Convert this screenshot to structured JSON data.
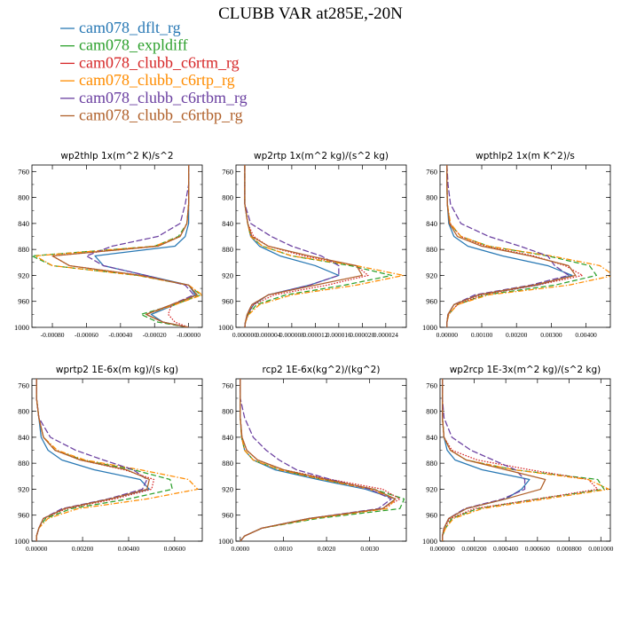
{
  "chart_data": {
    "type": "line",
    "title": "CLUBB VAR at285E,-20N",
    "colors": {
      "cam078_dflt_rg": "#2878b4",
      "cam078_expldiff": "#2ca02c",
      "cam078_clubb_c6rtm_rg": "#d62728",
      "cam078_clubb_c6rtp_rg": "#ff8c00",
      "cam078_clubb_c6rtbm_rg": "#6a3fa0",
      "cam078_clubb_c6rtbp_rg": "#b0602a"
    },
    "legend": [
      {
        "name": "cam078_dflt_rg",
        "dash": "solid"
      },
      {
        "name": "cam078_expldiff",
        "dash": "dash"
      },
      {
        "name": "cam078_clubb_c6rtm_rg",
        "dash": "dot"
      },
      {
        "name": "cam078_clubb_c6rtp_rg",
        "dash": "dashdot"
      },
      {
        "name": "cam078_clubb_c6rtbm_rg",
        "dash": "longdash"
      },
      {
        "name": "cam078_clubb_c6rtbp_rg",
        "dash": "solid"
      }
    ],
    "y_levels": [
      750,
      780,
      810,
      840,
      860,
      875,
      890,
      905,
      920,
      935,
      950,
      965,
      980,
      992,
      1000
    ],
    "ylim": [
      1000,
      750
    ],
    "yticks": [
      760,
      800,
      840,
      880,
      920,
      960,
      1000
    ],
    "panels": [
      {
        "title": "wp2thlp   1x(m^2 K)/s^2",
        "xlim": [
          -0.00092,
          8e-05
        ],
        "xtick_labels": [
          "-0.00080",
          "-0.00060",
          "-0.00040",
          "-0.00020",
          "-0.00000"
        ],
        "xtick_values": [
          -0.0008,
          -0.0006,
          -0.0004,
          -0.0002,
          0.0
        ],
        "series": [
          {
            "name": "cam078_dflt_rg",
            "values": [
              0,
              0,
              0,
              0,
              -2e-05,
              -8e-05,
              -0.00055,
              -0.0005,
              -0.00025,
              0,
              4e-05,
              -8e-05,
              -0.00022,
              -0.00015,
              0
            ]
          },
          {
            "name": "cam078_expldiff",
            "values": [
              0,
              0,
              0,
              -1e-05,
              -6e-05,
              -0.0002,
              -0.00092,
              -0.0008,
              -0.0003,
              0,
              7e-05,
              -8e-05,
              -0.00028,
              -0.00018,
              0
            ]
          },
          {
            "name": "cam078_clubb_c6rtm_rg",
            "values": [
              0,
              0,
              0,
              -1e-05,
              -5e-05,
              -0.00018,
              -0.0008,
              -0.0007,
              -0.00028,
              0,
              5e-05,
              -0.0001,
              -0.00012,
              -8e-05,
              0
            ]
          },
          {
            "name": "cam078_clubb_c6rtp_rg",
            "values": [
              0,
              0,
              0,
              -1e-05,
              -5e-05,
              -0.0002,
              -0.0009,
              -0.0008,
              -0.0003,
              0,
              8e-05,
              -8e-05,
              -0.00025,
              -0.00015,
              0
            ]
          },
          {
            "name": "cam078_clubb_c6rtbm_rg",
            "values": [
              0,
              0,
              -2e-05,
              -5e-05,
              -0.00018,
              -0.00045,
              -0.0006,
              -0.0005,
              -0.00025,
              -2e-05,
              3e-05,
              -0.0001,
              -0.00025,
              -0.00015,
              0
            ]
          },
          {
            "name": "cam078_clubb_c6rtbp_rg",
            "values": [
              0,
              0,
              0,
              -1e-05,
              -5e-05,
              -0.00018,
              -0.0008,
              -0.0007,
              -0.00028,
              0,
              5e-05,
              -0.0001,
              -0.00025,
              -0.00015,
              0
            ]
          }
        ]
      },
      {
        "title": "wp2rtp   1x(m^2 kg)/(s^2 kg)",
        "xlim": [
          -1.5e-06,
          2.75e-05
        ],
        "xtick_labels": [
          "0.000000",
          "0.000004",
          "0.000008",
          "0.000012",
          "0.000016",
          "0.000020",
          "0.000024"
        ],
        "xtick_values": [
          0.0,
          4e-06,
          8e-06,
          1.2e-05,
          1.6e-05,
          2e-05,
          2.4e-05
        ],
        "series": [
          {
            "name": "cam078_dflt_rg",
            "values": [
              0,
              0,
              0,
              5e-07,
              1e-06,
              2.5e-06,
              6e-06,
              1.2e-05,
              1.6e-05,
              1.1e-05,
              4e-06,
              1.5e-06,
              5e-07,
              1e-07,
              0
            ]
          },
          {
            "name": "cam078_expldiff",
            "values": [
              0,
              0,
              0,
              5e-07,
              1e-06,
              3e-06,
              8e-06,
              1.8e-05,
              2.5e-05,
              1.7e-05,
              7e-06,
              2e-06,
              6e-07,
              1e-07,
              0
            ]
          },
          {
            "name": "cam078_clubb_c6rtm_rg",
            "values": [
              0,
              0,
              0,
              5e-07,
              1.5e-06,
              4e-06,
              1e-05,
              1.9e-05,
              2.1e-05,
              1.4e-05,
              5e-06,
              1.5e-06,
              5e-07,
              1e-07,
              0
            ]
          },
          {
            "name": "cam078_clubb_c6rtp_rg",
            "values": [
              0,
              0,
              0,
              5e-07,
              1e-06,
              3e-06,
              8e-06,
              1.9e-05,
              2.7e-05,
              1.9e-05,
              8e-06,
              2.5e-06,
              7e-07,
              1e-07,
              0
            ]
          },
          {
            "name": "cam078_clubb_c6rtbm_rg",
            "values": [
              0,
              0,
              0,
              1e-06,
              4.5e-06,
              8e-06,
              1.3e-05,
              1.6e-05,
              1.6e-05,
              1.1e-05,
              4e-06,
              1.2e-06,
              4e-07,
              1e-07,
              0
            ]
          },
          {
            "name": "cam078_clubb_c6rtbp_rg",
            "values": [
              0,
              0,
              0,
              5e-07,
              1.2e-06,
              4e-06,
              1.1e-05,
              1.9e-05,
              2e-05,
              1.2e-05,
              4e-06,
              1.2e-06,
              4e-07,
              1e-07,
              0
            ]
          }
        ]
      },
      {
        "title": "wpthlp2   1x(m K^2)/s",
        "xlim": [
          -0.0002,
          0.0047
        ],
        "xtick_labels": [
          "0.00000",
          "0.00100",
          "0.00200",
          "0.00300",
          "0.00400"
        ],
        "xtick_values": [
          0.0,
          0.001,
          0.002,
          0.003,
          0.004
        ],
        "series": [
          {
            "name": "cam078_dflt_rg",
            "values": [
              0,
              0,
              1e-05,
              5e-05,
              0.0002,
              0.0006,
              0.0016,
              0.0029,
              0.0036,
              0.0026,
              0.0009,
              0.0002,
              3e-05,
              0,
              0
            ]
          },
          {
            "name": "cam078_expldiff",
            "values": [
              0,
              0,
              1e-05,
              8e-05,
              0.0004,
              0.0012,
              0.0029,
              0.0041,
              0.0043,
              0.0031,
              0.0011,
              0.0003,
              5e-05,
              0,
              0
            ]
          },
          {
            "name": "cam078_clubb_c6rtm_rg",
            "values": [
              0,
              0,
              1e-05,
              8e-05,
              0.0004,
              0.0011,
              0.0025,
              0.0034,
              0.0039,
              0.0026,
              0.001,
              0.0003,
              5e-05,
              0,
              0
            ]
          },
          {
            "name": "cam078_clubb_c6rtp_rg",
            "values": [
              0,
              0,
              1e-05,
              0.0001,
              0.0004,
              0.0012,
              0.003,
              0.0044,
              0.0048,
              0.0035,
              0.0012,
              0.0003,
              5e-05,
              0,
              0
            ]
          },
          {
            "name": "cam078_clubb_c6rtbm_rg",
            "values": [
              0,
              3e-05,
              0.0001,
              0.0004,
              0.0012,
              0.0021,
              0.0029,
              0.0031,
              0.0035,
              0.0024,
              0.0008,
              0.0002,
              3e-05,
              0,
              0
            ]
          },
          {
            "name": "cam078_clubb_c6rtbp_rg",
            "values": [
              0,
              0,
              1e-05,
              7e-05,
              0.0003,
              0.001,
              0.0024,
              0.0035,
              0.0037,
              0.0025,
              0.0009,
              0.0002,
              3e-05,
              0,
              0
            ]
          }
        ]
      },
      {
        "title": "wprtp2   1E-6x(m kg)/(s kg)",
        "xlim": [
          -0.0002,
          0.0072
        ],
        "xtick_labels": [
          "0.00000",
          "0.00200",
          "0.00400",
          "0.00600"
        ],
        "xtick_values": [
          0.0,
          0.002,
          0.004,
          0.006
        ],
        "series": [
          {
            "name": "cam078_dflt_rg",
            "values": [
              0,
              0,
              0.0001,
              0.0002,
              0.0005,
              0.0011,
              0.0025,
              0.0045,
              0.0049,
              0.0032,
              0.0012,
              0.0003,
              0.0001,
              0,
              0
            ]
          },
          {
            "name": "cam078_expldiff",
            "values": [
              0,
              0,
              0.0001,
              0.0003,
              0.0008,
              0.002,
              0.0042,
              0.0058,
              0.0059,
              0.004,
              0.0015,
              0.0004,
              0.0001,
              0,
              0
            ]
          },
          {
            "name": "cam078_clubb_c6rtm_rg",
            "values": [
              0,
              0,
              0.0001,
              0.0003,
              0.0008,
              0.0019,
              0.0038,
              0.0051,
              0.005,
              0.0034,
              0.0013,
              0.0003,
              0.0001,
              0,
              0
            ]
          },
          {
            "name": "cam078_clubb_c6rtp_rg",
            "values": [
              0,
              0,
              0.0001,
              0.0003,
              0.0009,
              0.0021,
              0.0045,
              0.0066,
              0.007,
              0.0048,
              0.0018,
              0.0005,
              0.0001,
              0,
              0
            ]
          },
          {
            "name": "cam078_clubb_c6rtbm_rg",
            "values": [
              0,
              0,
              0.0001,
              0.0006,
              0.0017,
              0.0029,
              0.0042,
              0.0048,
              0.0046,
              0.0031,
              0.0011,
              0.0003,
              0.0001,
              0,
              0
            ]
          },
          {
            "name": "cam078_clubb_c6rtbp_rg",
            "values": [
              0,
              0,
              0.0001,
              0.0003,
              0.0008,
              0.0019,
              0.0039,
              0.0049,
              0.0048,
              0.0032,
              0.0012,
              0.0003,
              0.0001,
              0,
              0
            ]
          }
        ]
      },
      {
        "title": "rcp2   1E-6x(kg^2)/(kg^2)",
        "xlim": [
          -0.0001,
          0.00385
        ],
        "xtick_labels": [
          "0.0000",
          "0.0010",
          "0.0020",
          "0.0030"
        ],
        "xtick_values": [
          0.0,
          0.001,
          0.002,
          0.003
        ],
        "series": [
          {
            "name": "cam078_dflt_rg",
            "values": [
              0,
              0,
              0,
              3e-05,
              0.0001,
              0.0003,
              0.0008,
              0.0018,
              0.0029,
              0.0036,
              0.0033,
              0.0016,
              0.0005,
              0.0001,
              0
            ]
          },
          {
            "name": "cam078_expldiff",
            "values": [
              0,
              0,
              0,
              3e-05,
              0.0001,
              0.0003,
              0.0009,
              0.0019,
              0.0031,
              0.0038,
              0.0037,
              0.0018,
              0.0005,
              0.0001,
              0
            ]
          },
          {
            "name": "cam078_clubb_c6rtm_rg",
            "values": [
              0,
              0,
              0,
              4e-05,
              0.00015,
              0.0004,
              0.001,
              0.0021,
              0.0033,
              0.0037,
              0.0033,
              0.0016,
              0.0005,
              0.0001,
              0
            ]
          },
          {
            "name": "cam078_clubb_c6rtp_rg",
            "values": [
              0,
              0,
              0,
              3e-05,
              0.0001,
              0.0003,
              0.0009,
              0.0019,
              0.003,
              0.0036,
              0.0034,
              0.0017,
              0.0005,
              0.0001,
              0
            ]
          },
          {
            "name": "cam078_clubb_c6rtbm_rg",
            "values": [
              0,
              0,
              0.0001,
              0.0003,
              0.0006,
              0.0009,
              0.0013,
              0.0021,
              0.003,
              0.0035,
              0.0032,
              0.0016,
              0.0005,
              0.0001,
              0
            ]
          },
          {
            "name": "cam078_clubb_c6rtbp_rg",
            "values": [
              0,
              0,
              0,
              4e-05,
              0.00015,
              0.0004,
              0.001,
              0.002,
              0.0031,
              0.0036,
              0.0033,
              0.0016,
              0.0005,
              0.0001,
              0
            ]
          }
        ]
      },
      {
        "title": "wp2rcp   1E-3x(m^2 kg)/(s^2 kg)",
        "xlim": [
          -1.5e-05,
          0.00106
        ],
        "xtick_labels": [
          "0.000000",
          "0.000200",
          "0.000400",
          "0.000600",
          "0.000800",
          "0.001000"
        ],
        "xtick_values": [
          0.0,
          0.0002,
          0.0004,
          0.0006,
          0.0008,
          0.001
        ],
        "series": [
          {
            "name": "cam078_dflt_rg",
            "values": [
              0,
              0,
              0,
              1e-05,
              3e-05,
              8e-05,
              0.00025,
              0.00055,
              0.0005,
              0.0004,
              0.00015,
              4e-05,
              1e-05,
              0,
              0
            ]
          },
          {
            "name": "cam078_expldiff",
            "values": [
              0,
              0,
              0,
              1e-05,
              5e-05,
              0.00015,
              0.00045,
              0.00098,
              0.00102,
              0.0006,
              0.00022,
              6e-05,
              2e-05,
              0,
              0
            ]
          },
          {
            "name": "cam078_clubb_c6rtm_rg",
            "values": [
              0,
              0,
              0,
              1e-05,
              6e-05,
              0.00022,
              0.00055,
              0.00092,
              0.00098,
              0.0006,
              0.0002,
              5e-05,
              1e-05,
              0,
              0
            ]
          },
          {
            "name": "cam078_clubb_c6rtp_rg",
            "values": [
              0,
              0,
              0,
              1e-05,
              5e-05,
              0.00015,
              0.00045,
              0.00092,
              0.00105,
              0.00065,
              0.00025,
              7e-05,
              2e-05,
              0,
              0
            ]
          },
          {
            "name": "cam078_clubb_c6rtbm_rg",
            "values": [
              0,
              0,
              1e-05,
              6e-05,
              0.00018,
              0.00032,
              0.00046,
              0.00052,
              0.00052,
              0.00038,
              0.00014,
              4e-05,
              1e-05,
              0,
              0
            ]
          },
          {
            "name": "cam078_clubb_c6rtbp_rg",
            "values": [
              0,
              0,
              0,
              1e-05,
              5e-05,
              0.00015,
              0.0004,
              0.00065,
              0.00062,
              0.0004,
              0.00015,
              4e-05,
              1e-05,
              0,
              0
            ]
          }
        ]
      }
    ]
  }
}
